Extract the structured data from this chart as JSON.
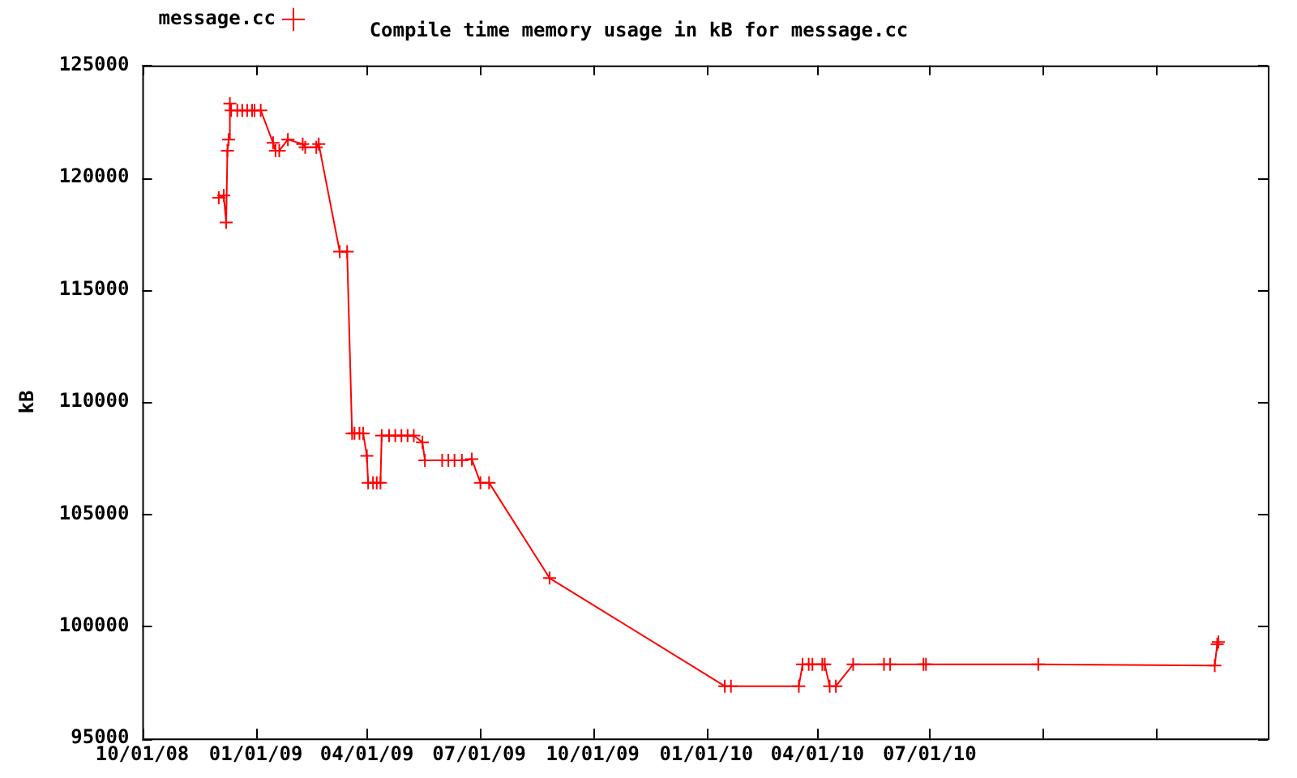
{
  "chart_data": {
    "type": "line",
    "title": "Compile time memory usage in kB for message.cc",
    "ylabel": "kB",
    "xlim": [
      "2008-10-01",
      "2011-04-01"
    ],
    "xticks": [
      {
        "value": "2008-10-01",
        "label": "10/01/08"
      },
      {
        "value": "2009-01-01",
        "label": "01/01/09"
      },
      {
        "value": "2009-04-01",
        "label": "04/01/09"
      },
      {
        "value": "2009-07-01",
        "label": "07/01/09"
      },
      {
        "value": "2009-10-01",
        "label": "10/01/09"
      },
      {
        "value": "2010-01-01",
        "label": "01/01/10"
      },
      {
        "value": "2010-04-01",
        "label": "04/01/10"
      },
      {
        "value": "2010-07-01",
        "label": "07/01/10"
      },
      {
        "value": "2010-10-01",
        "label": null
      },
      {
        "value": "2011-01-01",
        "label": null
      }
    ],
    "ylim": [
      95000,
      125000
    ],
    "yticks": [
      95000,
      100000,
      105000,
      110000,
      115000,
      120000,
      125000
    ],
    "grid": false,
    "legend": "top left",
    "marker": "cross",
    "line_style": "solid",
    "series": [
      {
        "name": "message.cc",
        "color": "#ff0000",
        "x": [
          "2008-12-02",
          "2008-12-06",
          "2008-12-08",
          "2008-12-09",
          "2008-12-10",
          "2008-12-11",
          "2008-12-12",
          "2008-12-17",
          "2008-12-21",
          "2008-12-25",
          "2008-12-29",
          "2008-12-31",
          "2009-01-05",
          "2009-01-15",
          "2009-01-17",
          "2009-01-20",
          "2009-01-27",
          "2009-02-08",
          "2009-02-10",
          "2009-02-19",
          "2009-02-21",
          "2009-03-10",
          "2009-03-16",
          "2009-03-20",
          "2009-03-22",
          "2009-03-26",
          "2009-03-29",
          "2009-04-01",
          "2009-04-02",
          "2009-04-06",
          "2009-04-09",
          "2009-04-12",
          "2009-04-13",
          "2009-04-19",
          "2009-04-24",
          "2009-04-29",
          "2009-05-04",
          "2009-05-09",
          "2009-05-16",
          "2009-05-18",
          "2009-06-01",
          "2009-06-06",
          "2009-06-11",
          "2009-06-17",
          "2009-06-25",
          "2009-07-02",
          "2009-07-09",
          "2009-08-27",
          "2010-01-16",
          "2010-01-21",
          "2010-03-17",
          "2010-03-20",
          "2010-03-25",
          "2010-03-28",
          "2010-04-05",
          "2010-04-07",
          "2010-04-11",
          "2010-04-16",
          "2010-04-30",
          "2010-05-25",
          "2010-05-30",
          "2010-06-26",
          "2010-06-28",
          "2010-09-27",
          "2011-02-17",
          "2011-02-19",
          "2011-02-20"
        ],
        "values": [
          119100,
          119200,
          118000,
          121200,
          121700,
          123300,
          123000,
          123000,
          123000,
          123000,
          123000,
          123000,
          123000,
          121550,
          121200,
          121200,
          121700,
          121500,
          121350,
          121350,
          121500,
          116700,
          116700,
          108600,
          108600,
          108600,
          108600,
          107600,
          106400,
          106400,
          106400,
          106400,
          108500,
          108500,
          108500,
          108500,
          108500,
          108500,
          108200,
          107400,
          107400,
          107400,
          107400,
          107400,
          107450,
          106400,
          106400,
          102150,
          97330,
          97330,
          97330,
          98300,
          98300,
          98300,
          98300,
          98300,
          97330,
          97330,
          98300,
          98300,
          98300,
          98300,
          98300,
          98300,
          98250,
          99200,
          99300
        ]
      }
    ]
  }
}
